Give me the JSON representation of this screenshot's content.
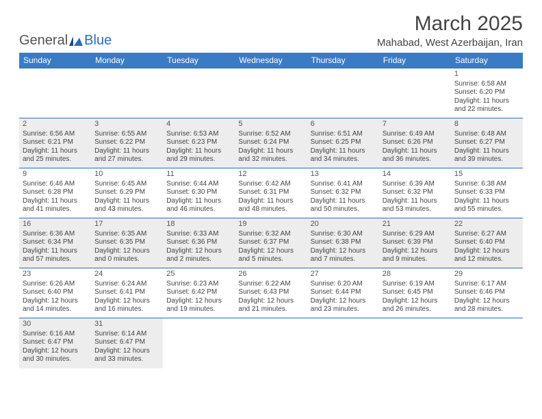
{
  "logo": {
    "part1": "General",
    "part2": "Blue"
  },
  "title": "March 2025",
  "location": "Mahabad, West Azerbaijan, Iran",
  "day_headers": [
    "Sunday",
    "Monday",
    "Tuesday",
    "Wednesday",
    "Thursday",
    "Friday",
    "Saturday"
  ],
  "colors": {
    "header_bg": "#3b7bc4",
    "header_text": "#ffffff",
    "rule": "#2a6db8",
    "grey_cell": "#ededed",
    "white_cell": "#ffffff",
    "text": "#444444"
  },
  "typography": {
    "title_fontsize": 30,
    "location_fontsize": 15,
    "dayheader_fontsize": 12,
    "daynum_fontsize": 11,
    "body_fontsize": 10
  },
  "weeks": [
    [
      {
        "n": "",
        "sunrise": "",
        "sunset": "",
        "daylight": "",
        "bg": "white"
      },
      {
        "n": "",
        "sunrise": "",
        "sunset": "",
        "daylight": "",
        "bg": "white"
      },
      {
        "n": "",
        "sunrise": "",
        "sunset": "",
        "daylight": "",
        "bg": "white"
      },
      {
        "n": "",
        "sunrise": "",
        "sunset": "",
        "daylight": "",
        "bg": "white"
      },
      {
        "n": "",
        "sunrise": "",
        "sunset": "",
        "daylight": "",
        "bg": "white"
      },
      {
        "n": "",
        "sunrise": "",
        "sunset": "",
        "daylight": "",
        "bg": "white"
      },
      {
        "n": "1",
        "sunrise": "Sunrise: 6:58 AM",
        "sunset": "Sunset: 6:20 PM",
        "daylight": "Daylight: 11 hours and 22 minutes.",
        "bg": "white"
      }
    ],
    [
      {
        "n": "2",
        "sunrise": "Sunrise: 6:56 AM",
        "sunset": "Sunset: 6:21 PM",
        "daylight": "Daylight: 11 hours and 25 minutes.",
        "bg": "grey"
      },
      {
        "n": "3",
        "sunrise": "Sunrise: 6:55 AM",
        "sunset": "Sunset: 6:22 PM",
        "daylight": "Daylight: 11 hours and 27 minutes.",
        "bg": "grey"
      },
      {
        "n": "4",
        "sunrise": "Sunrise: 6:53 AM",
        "sunset": "Sunset: 6:23 PM",
        "daylight": "Daylight: 11 hours and 29 minutes.",
        "bg": "grey"
      },
      {
        "n": "5",
        "sunrise": "Sunrise: 6:52 AM",
        "sunset": "Sunset: 6:24 PM",
        "daylight": "Daylight: 11 hours and 32 minutes.",
        "bg": "grey"
      },
      {
        "n": "6",
        "sunrise": "Sunrise: 6:51 AM",
        "sunset": "Sunset: 6:25 PM",
        "daylight": "Daylight: 11 hours and 34 minutes.",
        "bg": "grey"
      },
      {
        "n": "7",
        "sunrise": "Sunrise: 6:49 AM",
        "sunset": "Sunset: 6:26 PM",
        "daylight": "Daylight: 11 hours and 36 minutes.",
        "bg": "grey"
      },
      {
        "n": "8",
        "sunrise": "Sunrise: 6:48 AM",
        "sunset": "Sunset: 6:27 PM",
        "daylight": "Daylight: 11 hours and 39 minutes.",
        "bg": "grey"
      }
    ],
    [
      {
        "n": "9",
        "sunrise": "Sunrise: 6:46 AM",
        "sunset": "Sunset: 6:28 PM",
        "daylight": "Daylight: 11 hours and 41 minutes.",
        "bg": "white"
      },
      {
        "n": "10",
        "sunrise": "Sunrise: 6:45 AM",
        "sunset": "Sunset: 6:29 PM",
        "daylight": "Daylight: 11 hours and 43 minutes.",
        "bg": "white"
      },
      {
        "n": "11",
        "sunrise": "Sunrise: 6:44 AM",
        "sunset": "Sunset: 6:30 PM",
        "daylight": "Daylight: 11 hours and 46 minutes.",
        "bg": "white"
      },
      {
        "n": "12",
        "sunrise": "Sunrise: 6:42 AM",
        "sunset": "Sunset: 6:31 PM",
        "daylight": "Daylight: 11 hours and 48 minutes.",
        "bg": "white"
      },
      {
        "n": "13",
        "sunrise": "Sunrise: 6:41 AM",
        "sunset": "Sunset: 6:32 PM",
        "daylight": "Daylight: 11 hours and 50 minutes.",
        "bg": "white"
      },
      {
        "n": "14",
        "sunrise": "Sunrise: 6:39 AM",
        "sunset": "Sunset: 6:32 PM",
        "daylight": "Daylight: 11 hours and 53 minutes.",
        "bg": "white"
      },
      {
        "n": "15",
        "sunrise": "Sunrise: 6:38 AM",
        "sunset": "Sunset: 6:33 PM",
        "daylight": "Daylight: 11 hours and 55 minutes.",
        "bg": "white"
      }
    ],
    [
      {
        "n": "16",
        "sunrise": "Sunrise: 6:36 AM",
        "sunset": "Sunset: 6:34 PM",
        "daylight": "Daylight: 11 hours and 57 minutes.",
        "bg": "grey"
      },
      {
        "n": "17",
        "sunrise": "Sunrise: 6:35 AM",
        "sunset": "Sunset: 6:35 PM",
        "daylight": "Daylight: 12 hours and 0 minutes.",
        "bg": "grey"
      },
      {
        "n": "18",
        "sunrise": "Sunrise: 6:33 AM",
        "sunset": "Sunset: 6:36 PM",
        "daylight": "Daylight: 12 hours and 2 minutes.",
        "bg": "grey"
      },
      {
        "n": "19",
        "sunrise": "Sunrise: 6:32 AM",
        "sunset": "Sunset: 6:37 PM",
        "daylight": "Daylight: 12 hours and 5 minutes.",
        "bg": "grey"
      },
      {
        "n": "20",
        "sunrise": "Sunrise: 6:30 AM",
        "sunset": "Sunset: 6:38 PM",
        "daylight": "Daylight: 12 hours and 7 minutes.",
        "bg": "grey"
      },
      {
        "n": "21",
        "sunrise": "Sunrise: 6:29 AM",
        "sunset": "Sunset: 6:39 PM",
        "daylight": "Daylight: 12 hours and 9 minutes.",
        "bg": "grey"
      },
      {
        "n": "22",
        "sunrise": "Sunrise: 6:27 AM",
        "sunset": "Sunset: 6:40 PM",
        "daylight": "Daylight: 12 hours and 12 minutes.",
        "bg": "grey"
      }
    ],
    [
      {
        "n": "23",
        "sunrise": "Sunrise: 6:26 AM",
        "sunset": "Sunset: 6:40 PM",
        "daylight": "Daylight: 12 hours and 14 minutes.",
        "bg": "white"
      },
      {
        "n": "24",
        "sunrise": "Sunrise: 6:24 AM",
        "sunset": "Sunset: 6:41 PM",
        "daylight": "Daylight: 12 hours and 16 minutes.",
        "bg": "white"
      },
      {
        "n": "25",
        "sunrise": "Sunrise: 6:23 AM",
        "sunset": "Sunset: 6:42 PM",
        "daylight": "Daylight: 12 hours and 19 minutes.",
        "bg": "white"
      },
      {
        "n": "26",
        "sunrise": "Sunrise: 6:22 AM",
        "sunset": "Sunset: 6:43 PM",
        "daylight": "Daylight: 12 hours and 21 minutes.",
        "bg": "white"
      },
      {
        "n": "27",
        "sunrise": "Sunrise: 6:20 AM",
        "sunset": "Sunset: 6:44 PM",
        "daylight": "Daylight: 12 hours and 23 minutes.",
        "bg": "white"
      },
      {
        "n": "28",
        "sunrise": "Sunrise: 6:19 AM",
        "sunset": "Sunset: 6:45 PM",
        "daylight": "Daylight: 12 hours and 26 minutes.",
        "bg": "white"
      },
      {
        "n": "29",
        "sunrise": "Sunrise: 6:17 AM",
        "sunset": "Sunset: 6:46 PM",
        "daylight": "Daylight: 12 hours and 28 minutes.",
        "bg": "white"
      }
    ],
    [
      {
        "n": "30",
        "sunrise": "Sunrise: 6:16 AM",
        "sunset": "Sunset: 6:47 PM",
        "daylight": "Daylight: 12 hours and 30 minutes.",
        "bg": "grey"
      },
      {
        "n": "31",
        "sunrise": "Sunrise: 6:14 AM",
        "sunset": "Sunset: 6:47 PM",
        "daylight": "Daylight: 12 hours and 33 minutes.",
        "bg": "grey"
      },
      {
        "n": "",
        "sunrise": "",
        "sunset": "",
        "daylight": "",
        "bg": "white"
      },
      {
        "n": "",
        "sunrise": "",
        "sunset": "",
        "daylight": "",
        "bg": "white"
      },
      {
        "n": "",
        "sunrise": "",
        "sunset": "",
        "daylight": "",
        "bg": "white"
      },
      {
        "n": "",
        "sunrise": "",
        "sunset": "",
        "daylight": "",
        "bg": "white"
      },
      {
        "n": "",
        "sunrise": "",
        "sunset": "",
        "daylight": "",
        "bg": "white"
      }
    ]
  ]
}
